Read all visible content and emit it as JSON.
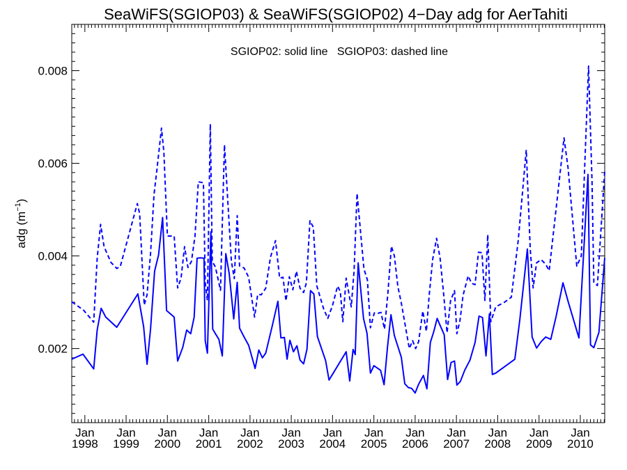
{
  "chart_data": {
    "type": "line",
    "title": "SeaWiFS(SGIOP03) & SeaWiFS(SGIOP02) 4−Day adg for AerTahiti",
    "annotation": "SGIOP02: solid line   SGIOP03: dashed line",
    "ylabel_base": "adg (m",
    "ylabel_sup": "−1",
    "ylabel_close": ")",
    "xlabel": "",
    "y_ticks": [
      "0.002",
      "0.004",
      "0.006",
      "0.008"
    ],
    "x_ticks": [
      {
        "line1": "Jan",
        "line2": "1998"
      },
      {
        "line1": "Jan",
        "line2": "1999"
      },
      {
        "line1": "Jan",
        "line2": "2000"
      },
      {
        "line1": "Jan",
        "line2": "2001"
      },
      {
        "line1": "Jan",
        "line2": "2002"
      },
      {
        "line1": "Jan",
        "line2": "2003"
      },
      {
        "line1": "Jan",
        "line2": "2004"
      },
      {
        "line1": "Jan",
        "line2": "2005"
      },
      {
        "line1": "Jan",
        "line2": "2006"
      },
      {
        "line1": "Jan",
        "line2": "2007"
      },
      {
        "line1": "Jan",
        "line2": "2008"
      },
      {
        "line1": "Jan",
        "line2": "2009"
      },
      {
        "line1": "Jan",
        "line2": "2010"
      }
    ],
    "xlim": [
      "1997-09-07",
      "2010-08-05"
    ],
    "ylim": [
      0.0004,
      0.009
    ],
    "grid": false,
    "line_color": "#0000ff",
    "series": [
      {
        "name": "SGIOP02",
        "style": "solid",
        "points": [
          [
            "1997-09-07",
            0.00177
          ],
          [
            "1997-12-15",
            0.00188
          ],
          [
            "1998-03-20",
            0.00156
          ],
          [
            "1998-04-20",
            0.0024
          ],
          [
            "1998-05-25",
            0.00287
          ],
          [
            "1998-07-05",
            0.00268
          ],
          [
            "1998-10-10",
            0.00246
          ],
          [
            "1999-04-15",
            0.00318
          ],
          [
            "1999-06-05",
            0.00247
          ],
          [
            "1999-07-05",
            0.00166
          ],
          [
            "1999-08-05",
            0.00242
          ],
          [
            "1999-09-10",
            0.00367
          ],
          [
            "1999-10-15",
            0.00402
          ],
          [
            "1999-11-20",
            0.00483
          ],
          [
            "1999-12-25",
            0.00282
          ],
          [
            "2000-03-01",
            0.00268
          ],
          [
            "2000-04-01",
            0.00173
          ],
          [
            "2000-05-15",
            0.00202
          ],
          [
            "2000-06-20",
            0.0024
          ],
          [
            "2000-07-25",
            0.00232
          ],
          [
            "2000-08-25",
            0.00268
          ],
          [
            "2000-09-20",
            0.00395
          ],
          [
            "2000-10-20",
            0.00396
          ],
          [
            "2000-11-20",
            0.00395
          ],
          [
            "2000-12-01",
            0.00217
          ],
          [
            "2000-12-20",
            0.0019
          ],
          [
            "2001-01-20",
            0.00452
          ],
          [
            "2001-02-05",
            0.00242
          ],
          [
            "2001-03-01",
            0.00232
          ],
          [
            "2001-04-01",
            0.0022
          ],
          [
            "2001-05-01",
            0.00184
          ],
          [
            "2001-06-01",
            0.00405
          ],
          [
            "2001-07-01",
            0.00362
          ],
          [
            "2001-08-10",
            0.00264
          ],
          [
            "2001-09-10",
            0.00343
          ],
          [
            "2001-10-01",
            0.00244
          ],
          [
            "2001-11-10",
            0.00225
          ],
          [
            "2001-12-20",
            0.00207
          ],
          [
            "2002-02-15",
            0.00157
          ],
          [
            "2002-03-20",
            0.00197
          ],
          [
            "2002-04-20",
            0.0018
          ],
          [
            "2002-05-20",
            0.0019
          ],
          [
            "2002-07-15",
            0.00247
          ],
          [
            "2002-09-05",
            0.00302
          ],
          [
            "2002-10-01",
            0.00223
          ],
          [
            "2002-11-01",
            0.00224
          ],
          [
            "2002-11-25",
            0.00177
          ],
          [
            "2002-12-20",
            0.00218
          ],
          [
            "2003-01-20",
            0.00193
          ],
          [
            "2003-02-20",
            0.00206
          ],
          [
            "2003-03-20",
            0.00175
          ],
          [
            "2003-04-20",
            0.00167
          ],
          [
            "2003-05-20",
            0.00198
          ],
          [
            "2003-06-20",
            0.00325
          ],
          [
            "2003-07-20",
            0.00318
          ],
          [
            "2003-08-20",
            0.00226
          ],
          [
            "2003-11-01",
            0.00174
          ],
          [
            "2003-12-01",
            0.00132
          ],
          [
            "2004-05-01",
            0.00193
          ],
          [
            "2004-06-01",
            0.0013
          ],
          [
            "2004-07-01",
            0.00198
          ],
          [
            "2004-07-20",
            0.00187
          ],
          [
            "2004-08-15",
            0.00385
          ],
          [
            "2004-10-01",
            0.00265
          ],
          [
            "2004-11-01",
            0.00233
          ],
          [
            "2004-12-01",
            0.00147
          ],
          [
            "2005-01-01",
            0.00163
          ],
          [
            "2005-03-01",
            0.00153
          ],
          [
            "2005-04-01",
            0.00122
          ],
          [
            "2005-05-01",
            0.00203
          ],
          [
            "2005-06-01",
            0.00273
          ],
          [
            "2005-07-01",
            0.00228
          ],
          [
            "2005-09-01",
            0.00181
          ],
          [
            "2005-10-01",
            0.00124
          ],
          [
            "2005-11-01",
            0.00116
          ],
          [
            "2005-12-01",
            0.00114
          ],
          [
            "2006-01-01",
            0.00104
          ],
          [
            "2006-02-01",
            0.00123
          ],
          [
            "2006-03-15",
            0.00142
          ],
          [
            "2006-04-15",
            0.00113
          ],
          [
            "2006-05-15",
            0.00213
          ],
          [
            "2006-06-15",
            0.00237
          ],
          [
            "2006-07-15",
            0.00265
          ],
          [
            "2006-08-15",
            0.00247
          ],
          [
            "2006-09-15",
            0.0023
          ],
          [
            "2006-10-15",
            0.00133
          ],
          [
            "2006-11-15",
            0.0017
          ],
          [
            "2006-12-15",
            0.00173
          ],
          [
            "2007-01-05",
            0.00121
          ],
          [
            "2007-02-05",
            0.00129
          ],
          [
            "2007-03-15",
            0.00153
          ],
          [
            "2007-05-01",
            0.00175
          ],
          [
            "2007-06-15",
            0.00213
          ],
          [
            "2007-07-20",
            0.0027
          ],
          [
            "2007-08-20",
            0.00267
          ],
          [
            "2007-09-20",
            0.00184
          ],
          [
            "2007-10-20",
            0.00275
          ],
          [
            "2007-11-15",
            0.00144
          ],
          [
            "2007-12-15",
            0.00147
          ],
          [
            "2008-06-01",
            0.00177
          ],
          [
            "2008-07-15",
            0.00263
          ],
          [
            "2008-09-20",
            0.00415
          ],
          [
            "2008-11-01",
            0.00225
          ],
          [
            "2008-12-10",
            0.00201
          ],
          [
            "2009-01-20",
            0.00215
          ],
          [
            "2009-03-01",
            0.00225
          ],
          [
            "2009-04-15",
            0.0022
          ],
          [
            "2009-06-01",
            0.00269
          ],
          [
            "2009-08-01",
            0.00342
          ],
          [
            "2009-09-15",
            0.00302
          ],
          [
            "2009-12-20",
            0.00223
          ],
          [
            "2010-03-10",
            0.00576
          ],
          [
            "2010-04-01",
            0.00208
          ],
          [
            "2010-05-01",
            0.00202
          ],
          [
            "2010-06-15",
            0.00235
          ],
          [
            "2010-08-05",
            0.00396
          ]
        ]
      },
      {
        "name": "SGIOP03",
        "style": "dashed",
        "points": [
          [
            "1997-09-07",
            0.00301
          ],
          [
            "1997-12-20",
            0.00283
          ],
          [
            "1998-03-20",
            0.00257
          ],
          [
            "1998-04-20",
            0.00395
          ],
          [
            "1998-05-20",
            0.00468
          ],
          [
            "1998-06-20",
            0.0042
          ],
          [
            "1998-08-20",
            0.00386
          ],
          [
            "1998-10-10",
            0.00373
          ],
          [
            "1998-11-10",
            0.00377
          ],
          [
            "1999-04-10",
            0.00513
          ],
          [
            "1999-05-01",
            0.00491
          ],
          [
            "1999-06-10",
            0.00294
          ],
          [
            "1999-07-05",
            0.00316
          ],
          [
            "1999-08-05",
            0.00405
          ],
          [
            "1999-09-05",
            0.00533
          ],
          [
            "1999-10-01",
            0.00587
          ],
          [
            "1999-11-10",
            0.00676
          ],
          [
            "1999-12-01",
            0.00625
          ],
          [
            "2000-01-01",
            0.00443
          ],
          [
            "2000-03-01",
            0.00443
          ],
          [
            "2000-04-01",
            0.00331
          ],
          [
            "2000-05-01",
            0.00352
          ],
          [
            "2000-06-01",
            0.0042
          ],
          [
            "2000-07-01",
            0.00375
          ],
          [
            "2000-08-01",
            0.00388
          ],
          [
            "2000-09-01",
            0.00443
          ],
          [
            "2000-10-01",
            0.0056
          ],
          [
            "2000-11-15",
            0.00558
          ],
          [
            "2000-12-01",
            0.00343
          ],
          [
            "2000-12-20",
            0.00304
          ],
          [
            "2001-01-15",
            0.00685
          ],
          [
            "2001-02-01",
            0.00388
          ],
          [
            "2001-03-01",
            0.00376
          ],
          [
            "2001-04-15",
            0.00326
          ],
          [
            "2001-05-20",
            0.0064
          ],
          [
            "2001-06-20",
            0.00513
          ],
          [
            "2001-07-20",
            0.00389
          ],
          [
            "2001-08-15",
            0.00351
          ],
          [
            "2001-09-10",
            0.00487
          ],
          [
            "2001-10-01",
            0.00378
          ],
          [
            "2001-11-10",
            0.00374
          ],
          [
            "2001-12-20",
            0.00354
          ],
          [
            "2002-02-10",
            0.00268
          ],
          [
            "2002-03-10",
            0.00317
          ],
          [
            "2002-04-10",
            0.00316
          ],
          [
            "2002-05-20",
            0.0033
          ],
          [
            "2002-07-01",
            0.00397
          ],
          [
            "2002-08-15",
            0.00433
          ],
          [
            "2002-09-20",
            0.00352
          ],
          [
            "2002-10-20",
            0.00354
          ],
          [
            "2002-11-15",
            0.00303
          ],
          [
            "2002-12-15",
            0.00355
          ],
          [
            "2003-01-15",
            0.00327
          ],
          [
            "2003-02-15",
            0.00367
          ],
          [
            "2003-03-20",
            0.0033
          ],
          [
            "2003-04-20",
            0.00321
          ],
          [
            "2003-05-15",
            0.00342
          ],
          [
            "2003-06-15",
            0.00476
          ],
          [
            "2003-07-15",
            0.00462
          ],
          [
            "2003-08-15",
            0.00335
          ],
          [
            "2003-10-15",
            0.00285
          ],
          [
            "2003-11-20",
            0.00265
          ],
          [
            "2004-01-01",
            0.00293
          ],
          [
            "2004-02-15",
            0.00335
          ],
          [
            "2004-03-10",
            0.00323
          ],
          [
            "2004-04-01",
            0.00258
          ],
          [
            "2004-05-01",
            0.00352
          ],
          [
            "2004-06-15",
            0.0029
          ],
          [
            "2004-07-10",
            0.00369
          ],
          [
            "2004-08-05",
            0.00535
          ],
          [
            "2004-09-05",
            0.00453
          ],
          [
            "2004-10-05",
            0.00372
          ],
          [
            "2004-11-05",
            0.00348
          ],
          [
            "2004-12-01",
            0.00245
          ],
          [
            "2005-01-05",
            0.00277
          ],
          [
            "2005-02-05",
            0.00276
          ],
          [
            "2005-03-05",
            0.00278
          ],
          [
            "2005-04-05",
            0.00242
          ],
          [
            "2005-05-05",
            0.0032
          ],
          [
            "2005-06-05",
            0.00421
          ],
          [
            "2005-07-01",
            0.004
          ],
          [
            "2005-08-01",
            0.00334
          ],
          [
            "2005-09-01",
            0.00298
          ],
          [
            "2005-11-10",
            0.002
          ],
          [
            "2005-12-10",
            0.00217
          ],
          [
            "2006-01-05",
            0.002
          ],
          [
            "2006-02-01",
            0.00215
          ],
          [
            "2006-03-10",
            0.00281
          ],
          [
            "2006-04-10",
            0.00237
          ],
          [
            "2006-05-05",
            0.00314
          ],
          [
            "2006-06-05",
            0.00393
          ],
          [
            "2006-07-10",
            0.00438
          ],
          [
            "2006-08-10",
            0.00394
          ],
          [
            "2006-09-10",
            0.00318
          ],
          [
            "2006-10-10",
            0.00234
          ],
          [
            "2006-11-10",
            0.00303
          ],
          [
            "2006-12-15",
            0.00325
          ],
          [
            "2007-01-05",
            0.00232
          ],
          [
            "2007-02-01",
            0.0026
          ],
          [
            "2007-03-01",
            0.00315
          ],
          [
            "2007-04-15",
            0.00357
          ],
          [
            "2007-05-15",
            0.00341
          ],
          [
            "2007-06-15",
            0.00338
          ],
          [
            "2007-07-15",
            0.00408
          ],
          [
            "2007-08-15",
            0.00407
          ],
          [
            "2007-09-10",
            0.00304
          ],
          [
            "2007-10-05",
            0.00446
          ],
          [
            "2007-11-01",
            0.00258
          ],
          [
            "2007-12-15",
            0.0029
          ],
          [
            "2008-03-01",
            0.003
          ],
          [
            "2008-05-01",
            0.00311
          ],
          [
            "2008-07-01",
            0.00434
          ],
          [
            "2008-09-10",
            0.00629
          ],
          [
            "2008-10-15",
            0.00415
          ],
          [
            "2008-11-10",
            0.00331
          ],
          [
            "2008-12-10",
            0.00385
          ],
          [
            "2009-01-20",
            0.00392
          ],
          [
            "2009-03-01",
            0.00382
          ],
          [
            "2009-04-01",
            0.00368
          ],
          [
            "2009-08-10",
            0.00655
          ],
          [
            "2009-09-15",
            0.0059
          ],
          [
            "2009-12-01",
            0.00378
          ],
          [
            "2010-01-10",
            0.004
          ],
          [
            "2010-03-15",
            0.0081
          ],
          [
            "2010-04-15",
            0.0056
          ],
          [
            "2010-05-01",
            0.00343
          ],
          [
            "2010-06-01",
            0.00336
          ],
          [
            "2010-08-05",
            0.00582
          ]
        ]
      }
    ]
  }
}
